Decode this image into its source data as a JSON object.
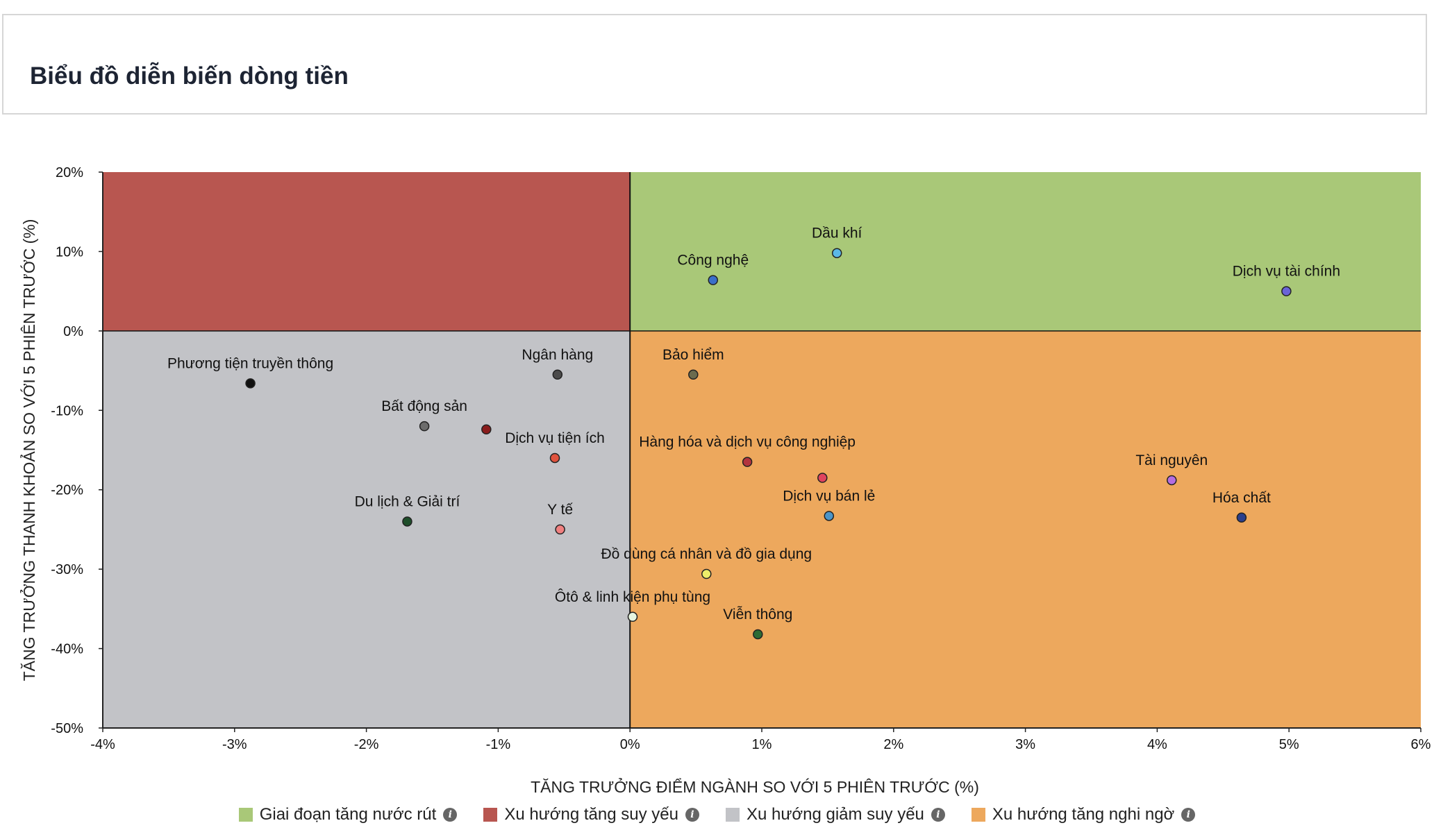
{
  "page": {
    "title": "Biểu đồ diễn biến dòng tiền"
  },
  "chart_data": {
    "type": "scatter",
    "xlabel": "TĂNG TRƯỞNG ĐIỂM NGÀNH SO VỚI 5 PHIÊN TRƯỚC (%)",
    "ylabel": "TĂNG TRƯỞNG THANH KHOẢN SO VỚI 5 PHIÊN TRƯỚC (%)",
    "xlim": [
      -4,
      6
    ],
    "ylim": [
      -50,
      20
    ],
    "x_ticks": [
      "-4%",
      "-3%",
      "-2%",
      "-1%",
      "0%",
      "1%",
      "2%",
      "3%",
      "4%",
      "5%",
      "6%"
    ],
    "y_ticks": [
      "20%",
      "10%",
      "0%",
      "-10%",
      "-20%",
      "-30%",
      "-40%",
      "-50%"
    ],
    "quadrants": [
      {
        "name": "Giai đoạn tăng nước rút",
        "color": "#a9c878",
        "region": "top-right"
      },
      {
        "name": "Xu hướng tăng suy yếu",
        "color": "#b85650",
        "region": "top-left"
      },
      {
        "name": "Xu hướng giảm suy yếu",
        "color": "#c2c3c7",
        "region": "bottom-left"
      },
      {
        "name": "Xu hướng tăng nghi ngờ",
        "color": "#eda85d",
        "region": "bottom-right"
      }
    ],
    "points": [
      {
        "name": "Dầu khí",
        "x": 1.57,
        "y": 9.8,
        "color": "#5bb8e6"
      },
      {
        "name": "Công nghệ",
        "x": 0.63,
        "y": 6.4,
        "color": "#3a6fc9"
      },
      {
        "name": "Dịch vụ tài chính",
        "x": 4.98,
        "y": 5.0,
        "color": "#6a64d8"
      },
      {
        "name": "Phương tiện truyền thông",
        "x": -2.88,
        "y": -6.6,
        "color": "#111111"
      },
      {
        "name": "Ngân hàng",
        "x": -0.55,
        "y": -5.5,
        "color": "#4b4b4b"
      },
      {
        "name": "Bảo hiểm",
        "x": 0.48,
        "y": -5.5,
        "color": "#6b6b4e"
      },
      {
        "name": "Bất động sản",
        "x": -1.56,
        "y": -12.0,
        "color": "#6c6c6c"
      },
      {
        "name": "",
        "x": -1.09,
        "y": -12.4,
        "color": "#8a1c1c"
      },
      {
        "name": "Dịch vụ tiện ích",
        "x": -0.57,
        "y": -16.0,
        "color": "#e0533e"
      },
      {
        "name": "Hàng hóa và dịch vụ công nghiệp",
        "x": 0.89,
        "y": -16.5,
        "color": "#b3343e"
      },
      {
        "name": "",
        "x": 1.46,
        "y": -18.5,
        "color": "#e0445e"
      },
      {
        "name": "Tài nguyên",
        "x": 4.11,
        "y": -18.8,
        "color": "#b56de0"
      },
      {
        "name": "Dịch vụ bán lẻ",
        "x": 1.51,
        "y": -23.3,
        "color": "#4d95c8"
      },
      {
        "name": "Hóa chất",
        "x": 4.64,
        "y": -23.5,
        "color": "#2b3f8c"
      },
      {
        "name": "Du lịch & Giải trí",
        "x": -1.69,
        "y": -24.0,
        "color": "#1e4e2a"
      },
      {
        "name": "Y tế",
        "x": -0.53,
        "y": -25.0,
        "color": "#f08080"
      },
      {
        "name": "Đồ dùng cá nhân và đồ gia dụng",
        "x": 0.58,
        "y": -30.6,
        "color": "#eded6a"
      },
      {
        "name": "Ôtô & linh kiện phụ tùng",
        "x": 0.02,
        "y": -36.0,
        "color": "#e6f5e0"
      },
      {
        "name": "Viễn thông",
        "x": 0.97,
        "y": -38.2,
        "color": "#2d6b34"
      }
    ],
    "legend": [
      {
        "label": "Giai đoạn tăng nước rút",
        "color": "#a9c878"
      },
      {
        "label": "Xu hướng tăng suy yếu",
        "color": "#b85650"
      },
      {
        "label": "Xu hướng giảm suy yếu",
        "color": "#c2c3c7"
      },
      {
        "label": "Xu hướng tăng nghi ngờ",
        "color": "#eda85d"
      }
    ],
    "legend_position": "bottom"
  }
}
